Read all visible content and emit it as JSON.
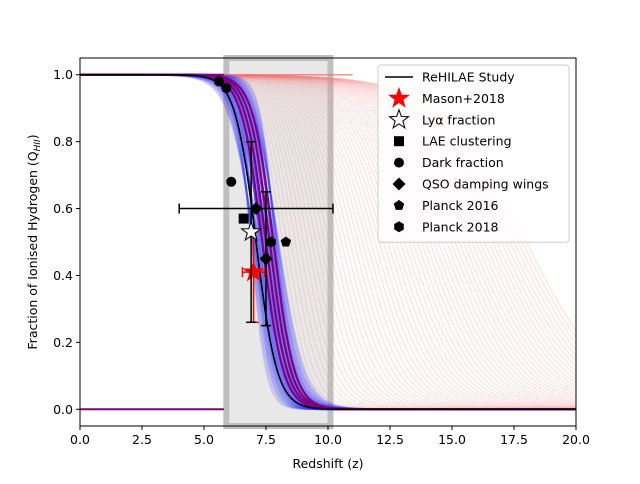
{
  "chart_data": {
    "type": "line",
    "title": "",
    "xlabel": "Redshift (z)",
    "ylabel": "Fraction of Ionised Hydrogen (Q",
    "ylabel_sub": "HII",
    "ylabel_close": ")",
    "xlim": [
      0,
      20
    ],
    "ylim": [
      -0.05,
      1.05
    ],
    "xticks": [
      0.0,
      2.5,
      5.0,
      7.5,
      10.0,
      12.5,
      15.0,
      17.5,
      20.0
    ],
    "xtick_labels": [
      "0.0",
      "2.5",
      "5.0",
      "7.5",
      "10.0",
      "12.5",
      "15.0",
      "17.5",
      "20.0"
    ],
    "yticks": [
      0.0,
      0.2,
      0.4,
      0.6,
      0.8,
      1.0
    ],
    "ytick_labels": [
      "0.0",
      "0.2",
      "0.4",
      "0.6",
      "0.8",
      "1.0"
    ],
    "grid": false,
    "legend_position": "top-right",
    "shaded_regions": [
      {
        "type": "band",
        "x0": 5.9,
        "x1": 10.1,
        "color": "#e8e8e8",
        "edge": "#c0c0c0"
      }
    ],
    "model_curve": {
      "name": "ReHILAE Study",
      "color": "#000000",
      "midpoint_z": 7.1,
      "width": 0.42
    },
    "blue_curves": {
      "color": "#3333ff",
      "midpoint_range": [
        6.9,
        8.0
      ],
      "width_range": [
        0.3,
        0.55
      ]
    },
    "purple_curves": {
      "color": "#800080",
      "midpoints": [
        7.35,
        7.5,
        7.65,
        7.8
      ],
      "width": 0.42
    },
    "pink_curves": {
      "color": "#f08080",
      "midpoint_range": [
        8.0,
        18.0
      ],
      "width_range": [
        0.5,
        1.7
      ]
    },
    "observations": [
      {
        "name": "Mason+2018",
        "marker": "star",
        "filled": true,
        "color": "#ff0000",
        "points": [
          {
            "x": 7.0,
            "y": 0.41,
            "xerr": 0.45,
            "yerr": [
              0.15,
              0.12
            ]
          }
        ]
      },
      {
        "name": "Lyα fraction",
        "marker": "star",
        "filled": false,
        "color": "#000000",
        "points": [
          {
            "x": 6.9,
            "y": 0.53,
            "xerr": 0.0,
            "yerr": [
              0.27,
              0.27
            ]
          }
        ]
      },
      {
        "name": "LAE clustering",
        "marker": "square",
        "filled": true,
        "color": "#000000",
        "points": [
          {
            "x": 6.6,
            "y": 0.57,
            "xerr": 0.0,
            "yerr": [
              0.0,
              0.0
            ]
          }
        ]
      },
      {
        "name": "Dark fraction",
        "marker": "circle",
        "filled": true,
        "color": "#000000",
        "points": [
          {
            "x": 5.6,
            "y": 0.98
          },
          {
            "x": 5.9,
            "y": 0.96
          },
          {
            "x": 6.1,
            "y": 0.68
          }
        ]
      },
      {
        "name": "QSO damping wings",
        "marker": "diamond",
        "filled": true,
        "color": "#000000",
        "points": [
          {
            "x": 7.1,
            "y": 0.6,
            "xerr": 3.1,
            "yerr": [
              0.0,
              0.0
            ]
          },
          {
            "x": 7.5,
            "y": 0.45,
            "xerr": 0.0,
            "yerr": [
              0.2,
              0.2
            ]
          }
        ]
      },
      {
        "name": "Planck 2016",
        "marker": "pentagon",
        "filled": true,
        "color": "#000000",
        "points": [
          {
            "x": 8.3,
            "y": 0.5
          }
        ]
      },
      {
        "name": "Planck 2018",
        "marker": "hexagon",
        "filled": true,
        "color": "#000000",
        "points": [
          {
            "x": 7.7,
            "y": 0.5
          }
        ]
      }
    ],
    "legend": [
      {
        "label": "ReHILAE Study",
        "marker": "line",
        "color": "#000000"
      },
      {
        "label": "Mason+2018",
        "marker": "star",
        "filled": true,
        "color": "#ff0000"
      },
      {
        "label": "Lyα fraction",
        "marker": "star",
        "filled": false,
        "color": "#000000"
      },
      {
        "label": "LAE clustering",
        "marker": "square",
        "filled": true,
        "color": "#000000"
      },
      {
        "label": "Dark fraction",
        "marker": "circle",
        "filled": true,
        "color": "#000000"
      },
      {
        "label": "QSO damping wings",
        "marker": "diamond",
        "filled": true,
        "color": "#000000"
      },
      {
        "label": "Planck 2016",
        "marker": "pentagon",
        "filled": true,
        "color": "#000000"
      },
      {
        "label": "Planck 2018",
        "marker": "hexagon",
        "filled": true,
        "color": "#000000"
      }
    ]
  }
}
